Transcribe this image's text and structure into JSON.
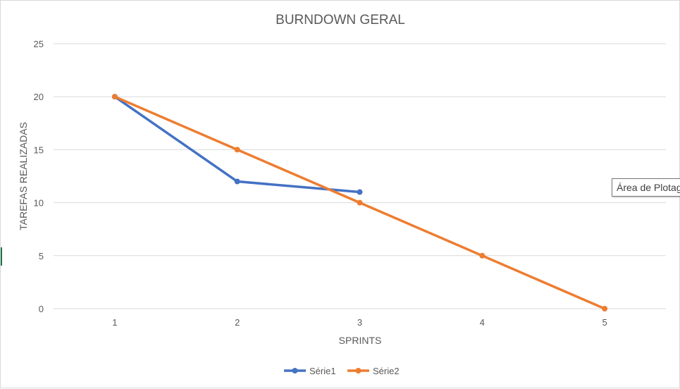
{
  "chart_data": {
    "type": "line",
    "title": "BURNDOWN GERAL",
    "xlabel": "SPRINTS",
    "ylabel": "TAREFAS REALIZADAS",
    "categories": [
      "1",
      "2",
      "3",
      "4",
      "5"
    ],
    "ylim": [
      0,
      25
    ],
    "yticks": [
      "0",
      "5",
      "10",
      "15",
      "20",
      "25"
    ],
    "grid": true,
    "legend_position": "bottom",
    "series": [
      {
        "name": "Série1",
        "color": "#4472C4",
        "values": [
          20,
          12,
          11,
          null,
          null
        ]
      },
      {
        "name": "Série2",
        "color": "#ED7D31",
        "values": [
          20,
          15,
          10,
          5,
          0
        ]
      }
    ]
  },
  "tooltip": {
    "text": "Área de Plotagem"
  }
}
